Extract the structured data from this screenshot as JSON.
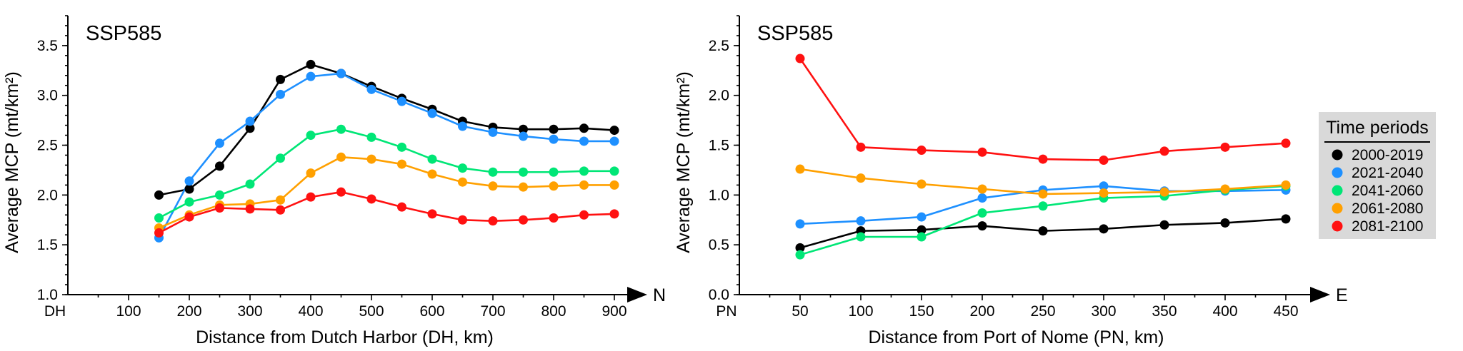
{
  "chart_data": [
    {
      "type": "line",
      "title": "SSP585",
      "xlabel": "Distance from Dutch Harbor (DH, km)",
      "ylabel": "Average MCP (mt/km²)",
      "origin_label": "DH",
      "arrow_label": "N",
      "xlim": [
        0,
        900
      ],
      "ylim": [
        1.0,
        3.8
      ],
      "xticks": [
        100,
        200,
        300,
        400,
        500,
        600,
        700,
        800,
        900
      ],
      "yticks": [
        1.0,
        1.5,
        2.0,
        2.5,
        3.0,
        3.5
      ],
      "x": [
        150,
        200,
        250,
        300,
        350,
        400,
        450,
        500,
        550,
        600,
        650,
        700,
        750,
        800,
        850,
        900
      ],
      "series": [
        {
          "name": "2000-2019",
          "color": "#000000",
          "values": [
            2.0,
            2.06,
            2.29,
            2.67,
            3.16,
            3.31,
            3.22,
            3.09,
            2.97,
            2.86,
            2.74,
            2.68,
            2.66,
            2.66,
            2.67,
            2.65
          ]
        },
        {
          "name": "2021-2040",
          "color": "#1E90FF",
          "values": [
            1.57,
            2.14,
            2.52,
            2.74,
            3.01,
            3.19,
            3.22,
            3.06,
            2.94,
            2.82,
            2.69,
            2.63,
            2.59,
            2.56,
            2.54,
            2.54
          ]
        },
        {
          "name": "2041-2060",
          "color": "#00E676",
          "values": [
            1.77,
            1.93,
            2.0,
            2.11,
            2.37,
            2.6,
            2.66,
            2.58,
            2.48,
            2.36,
            2.27,
            2.23,
            2.23,
            2.23,
            2.24,
            2.24
          ]
        },
        {
          "name": "2061-2080",
          "color": "#FFA000",
          "values": [
            1.67,
            1.8,
            1.9,
            1.91,
            1.95,
            2.22,
            2.38,
            2.36,
            2.31,
            2.21,
            2.13,
            2.09,
            2.08,
            2.09,
            2.1,
            2.1
          ]
        },
        {
          "name": "2081-2100",
          "color": "#FF1111",
          "values": [
            1.62,
            1.78,
            1.87,
            1.86,
            1.85,
            1.98,
            2.03,
            1.96,
            1.88,
            1.81,
            1.75,
            1.74,
            1.75,
            1.77,
            1.8,
            1.81
          ]
        }
      ],
      "legend": "none",
      "grid": false
    },
    {
      "type": "line",
      "title": "SSP585",
      "xlabel": "Distance from Port of Nome (PN, km)",
      "ylabel": "Average MCP (mt/km²)",
      "origin_label": "PN",
      "arrow_label": "E",
      "xlim": [
        0,
        450
      ],
      "ylim": [
        0.0,
        2.8
      ],
      "xticks": [
        50,
        100,
        150,
        200,
        250,
        300,
        350,
        400,
        450
      ],
      "yticks": [
        0.0,
        0.5,
        1.0,
        1.5,
        2.0,
        2.5
      ],
      "x": [
        50,
        100,
        150,
        200,
        250,
        300,
        350,
        400,
        450
      ],
      "series": [
        {
          "name": "2000-2019",
          "color": "#000000",
          "values": [
            0.47,
            0.64,
            0.65,
            0.69,
            0.64,
            0.66,
            0.7,
            0.72,
            0.76
          ]
        },
        {
          "name": "2021-2040",
          "color": "#1E90FF",
          "values": [
            0.71,
            0.74,
            0.78,
            0.97,
            1.05,
            1.09,
            1.04,
            1.04,
            1.05
          ]
        },
        {
          "name": "2041-2060",
          "color": "#00E676",
          "values": [
            0.4,
            0.58,
            0.58,
            0.82,
            0.89,
            0.97,
            0.99,
            1.05,
            1.09
          ]
        },
        {
          "name": "2061-2080",
          "color": "#FFA000",
          "values": [
            1.26,
            1.17,
            1.11,
            1.06,
            1.01,
            1.02,
            1.03,
            1.06,
            1.1
          ]
        },
        {
          "name": "2081-2100",
          "color": "#FF1111",
          "values": [
            2.37,
            1.48,
            1.45,
            1.43,
            1.36,
            1.35,
            1.44,
            1.48,
            1.52
          ]
        }
      ],
      "legend": "right",
      "grid": false
    }
  ],
  "legend": {
    "title": "Time periods",
    "items": [
      {
        "label": "2000-2019",
        "color": "#000000"
      },
      {
        "label": "2021-2040",
        "color": "#1E90FF"
      },
      {
        "label": "2041-2060",
        "color": "#00E676"
      },
      {
        "label": "2061-2080",
        "color": "#FFA000"
      },
      {
        "label": "2081-2100",
        "color": "#FF1111"
      }
    ]
  }
}
